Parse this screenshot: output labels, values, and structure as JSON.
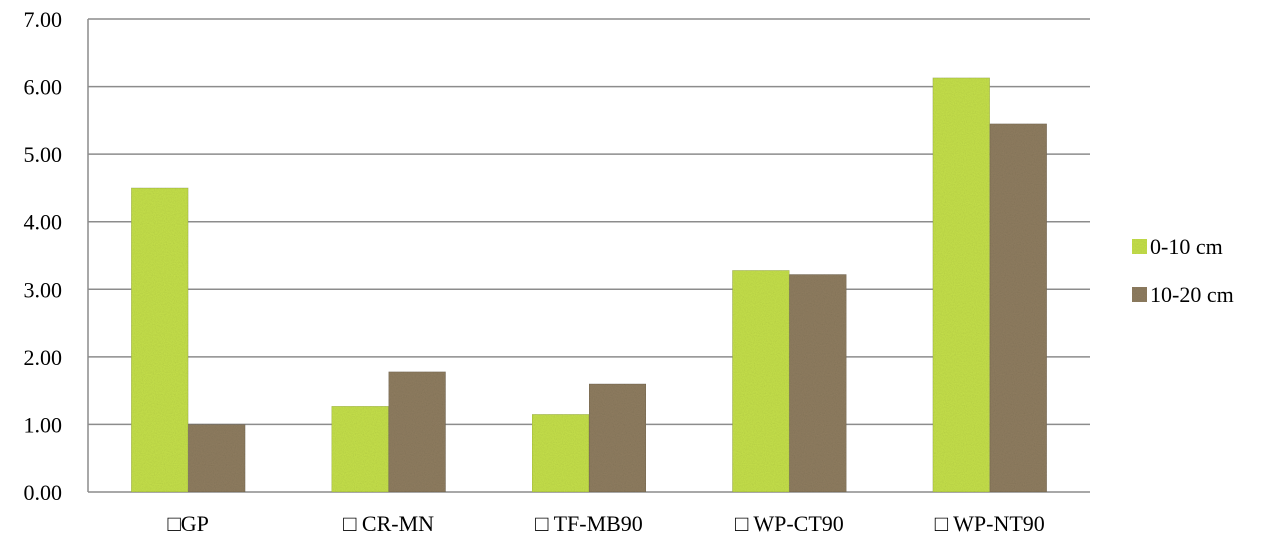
{
  "chart_data": {
    "type": "bar",
    "title": "",
    "xlabel": "",
    "ylabel": "",
    "categories": [
      "□GP",
      "□  CR-MN",
      "□  TF-MB90",
      "□  WP-CT90",
      "□  WP-NT90"
    ],
    "series": [
      {
        "name": "0-10 cm",
        "color": "#c5e04a",
        "values": [
          4.5,
          1.27,
          1.15,
          3.28,
          6.13
        ]
      },
      {
        "name": "10-20 cm",
        "color": "#8f7d60",
        "values": [
          1.0,
          1.78,
          1.6,
          3.22,
          5.45
        ]
      }
    ],
    "ylim": [
      0,
      7
    ],
    "yticks": [
      "0.00",
      "1.00",
      "2.00",
      "3.00",
      "4.00",
      "5.00",
      "6.00",
      "7.00"
    ],
    "grid": true,
    "legend_position": "right"
  }
}
